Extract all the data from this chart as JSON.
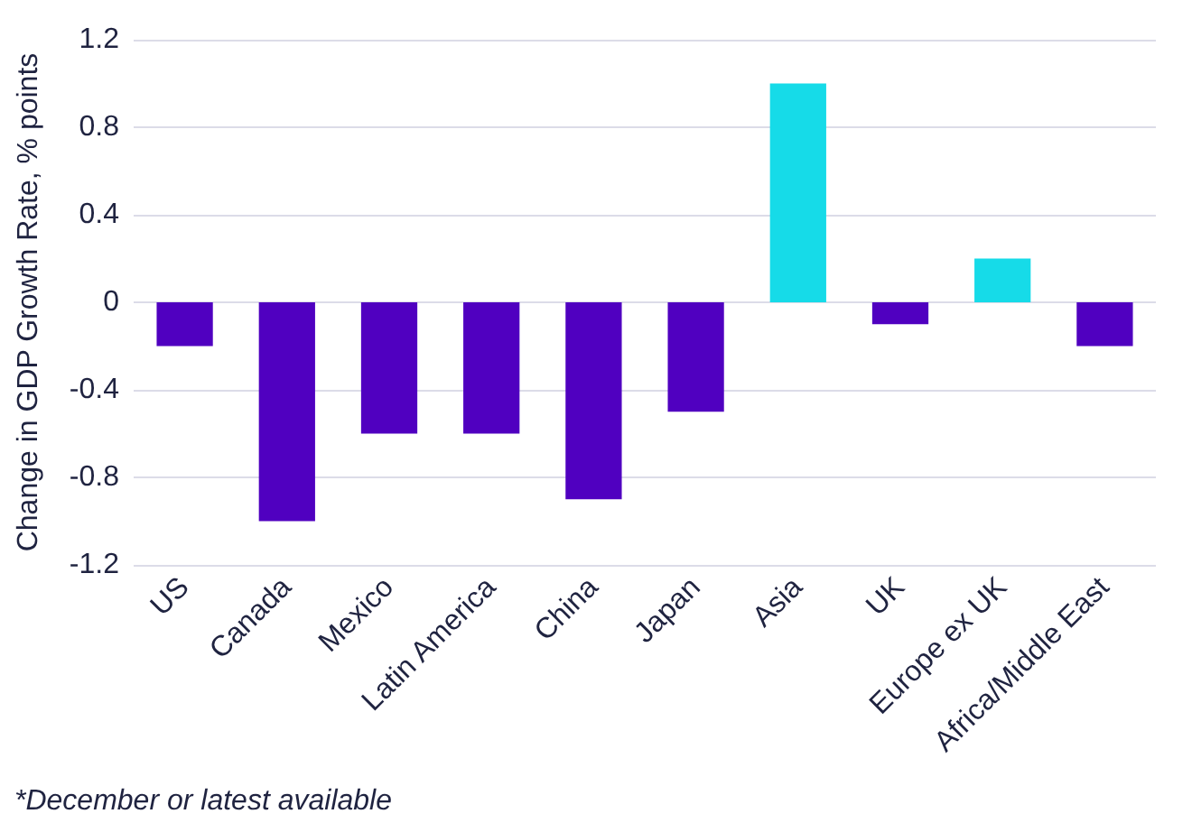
{
  "chart_data": {
    "type": "bar",
    "ylabel": "Change in GDP Growth Rate, % points",
    "categories": [
      "US",
      "Canada",
      "Mexico",
      "Latin America",
      "China",
      "Japan",
      "Asia",
      "UK",
      "Europe ex UK",
      "Africa/Middle East"
    ],
    "values": [
      -0.2,
      -1.0,
      -0.6,
      -0.6,
      -0.9,
      -0.5,
      1.0,
      -0.1,
      0.2,
      -0.2
    ],
    "colors": [
      "#5000c0",
      "#5000c0",
      "#5000c0",
      "#5000c0",
      "#5000c0",
      "#5000c0",
      "#16dbe8",
      "#5000c0",
      "#16dbe8",
      "#5000c0"
    ],
    "ylim": [
      -1.2,
      1.2
    ],
    "yticks": [
      -1.2,
      -0.8,
      -0.4,
      0,
      0.4,
      0.8,
      1.2
    ],
    "grid": "y",
    "annotations": [
      "*December or latest available"
    ]
  }
}
